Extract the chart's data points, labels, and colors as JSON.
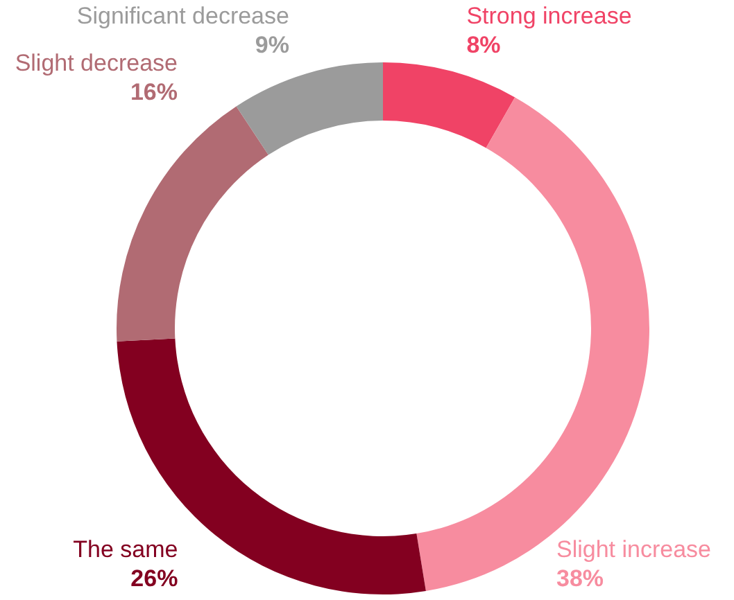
{
  "chart_data": {
    "type": "donut",
    "categories": [
      "Strong increase",
      "Slight increase",
      "The same",
      "Slight decrease",
      "Significant decrease"
    ],
    "values": [
      8,
      38,
      26,
      16,
      9
    ],
    "value_labels": [
      "8%",
      "38%",
      "26%",
      "16%",
      "9%"
    ],
    "colors": [
      "#f04366",
      "#f78c9f",
      "#830020",
      "#b16b73",
      "#9b9b9b"
    ]
  }
}
